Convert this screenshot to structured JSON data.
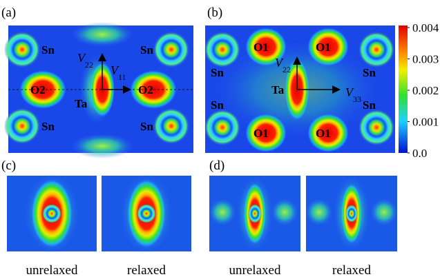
{
  "panels": [
    {
      "label": "(a)",
      "atoms": [
        "Sn",
        "Sn",
        "Sn",
        "Sn",
        "O2",
        "O2",
        "Ta"
      ],
      "axes": [
        {
          "symbol": "V",
          "subscript": "22"
        },
        {
          "symbol": "V",
          "subscript": "11"
        }
      ]
    },
    {
      "label": "(b)",
      "atoms": [
        "O1",
        "O1",
        "O1",
        "O1",
        "Sn",
        "Sn",
        "Sn",
        "Sn",
        "Ta"
      ],
      "axes": [
        {
          "symbol": "V",
          "subscript": "22"
        },
        {
          "symbol": "V",
          "subscript": "33"
        }
      ]
    },
    {
      "label": "(c)",
      "captions": [
        "unrelaxed",
        "relaxed"
      ]
    },
    {
      "label": "(d)",
      "captions": [
        "unrelaxed",
        "relaxed"
      ]
    }
  ],
  "colorbar": {
    "lim": [
      0,
      0.004
    ],
    "ticks": [
      0.004,
      0.003,
      0.002,
      0.001,
      {
        "value": 0,
        "label": "0.0"
      }
    ]
  }
}
